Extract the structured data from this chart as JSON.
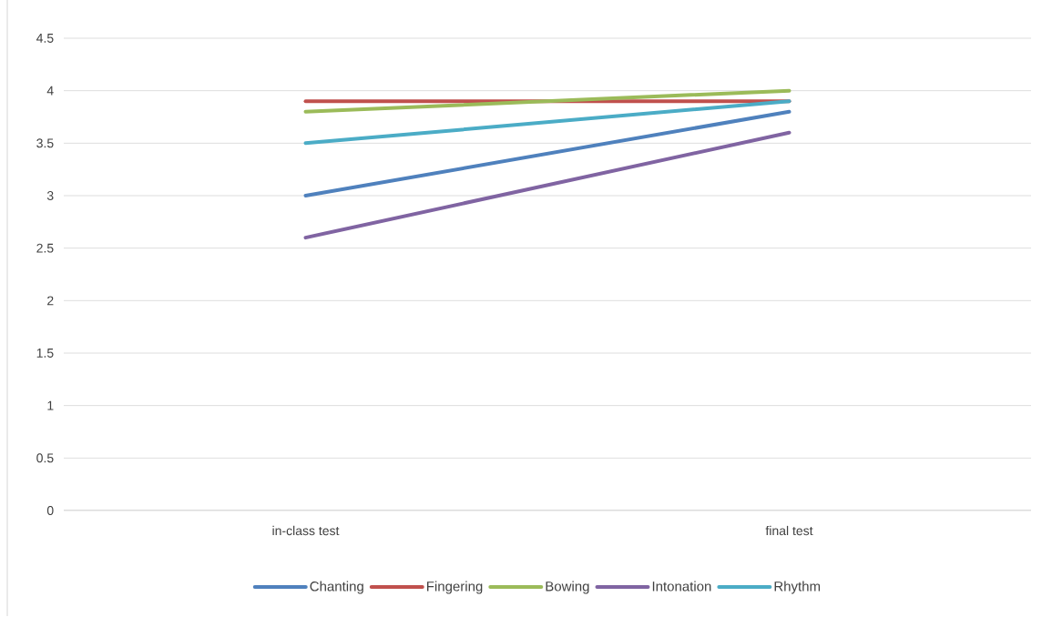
{
  "chart_data": {
    "type": "line",
    "categories": [
      "in-class test",
      "final test"
    ],
    "series": [
      {
        "name": "Chanting",
        "color": "#4f81bd",
        "values": [
          3.0,
          3.8
        ]
      },
      {
        "name": "Fingering",
        "color": "#c0504d",
        "values": [
          3.9,
          3.9
        ]
      },
      {
        "name": "Bowing",
        "color": "#9bbb59",
        "values": [
          3.8,
          4.0
        ]
      },
      {
        "name": "Intonation",
        "color": "#8064a2",
        "values": [
          2.6,
          3.6
        ]
      },
      {
        "name": "Rhythm",
        "color": "#4bacc6",
        "values": [
          3.5,
          3.9
        ]
      }
    ],
    "ylim": [
      0,
      4.5
    ],
    "yticks": [
      0,
      0.5,
      1,
      1.5,
      2,
      2.5,
      3,
      3.5,
      4,
      4.5
    ],
    "grid": "y",
    "legend": "bottom"
  }
}
